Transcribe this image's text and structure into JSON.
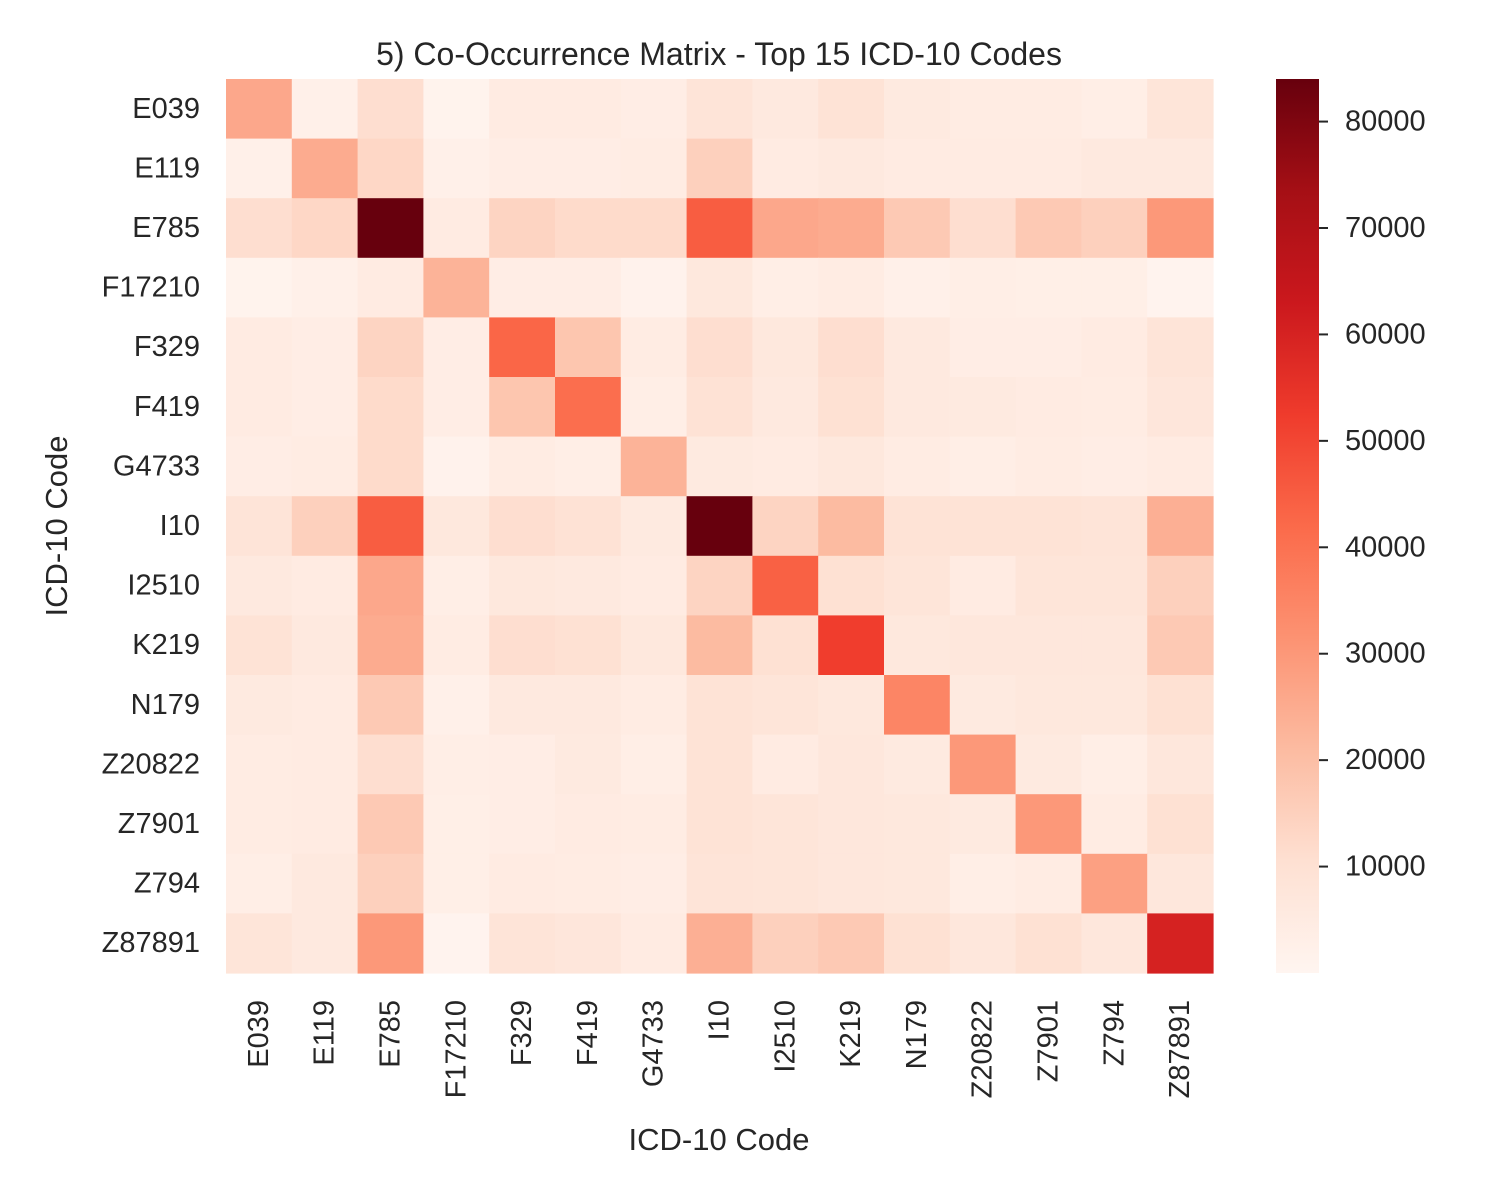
{
  "chart_data": {
    "type": "heatmap",
    "title": "5) Co-Occurrence Matrix - Top 15 ICD-10 Codes",
    "xlabel": "ICD-10 Code",
    "ylabel": "ICD-10 Code",
    "categories": [
      "E039",
      "E119",
      "E785",
      "F17210",
      "F329",
      "F419",
      "G4733",
      "I10",
      "I2510",
      "K219",
      "N179",
      "Z20822",
      "Z7901",
      "Z794",
      "Z87891"
    ],
    "colormap": "Reds",
    "vmin": 0,
    "vmax": 84000,
    "colorbar_ticks": [
      10000,
      20000,
      30000,
      40000,
      50000,
      60000,
      70000,
      80000
    ],
    "colorbar_tick_labels": [
      "10000",
      "20000",
      "30000",
      "40000",
      "50000",
      "60000",
      "70000",
      "80000"
    ],
    "matrix": [
      [
        26000,
        2500,
        11000,
        1200,
        5000,
        5000,
        4000,
        8500,
        6000,
        9000,
        5500,
        4500,
        4500,
        3500,
        8000
      ],
      [
        2500,
        25000,
        13000,
        2500,
        4000,
        4000,
        4500,
        15000,
        5000,
        6000,
        5000,
        5000,
        5000,
        6000,
        6000
      ],
      [
        11000,
        13000,
        84000,
        5000,
        14000,
        12000,
        12000,
        45000,
        26000,
        25000,
        17000,
        11000,
        17000,
        15000,
        30000
      ],
      [
        1200,
        2500,
        5000,
        23000,
        4000,
        4000,
        1500,
        6500,
        3500,
        4500,
        2500,
        3500,
        3000,
        3000,
        800
      ],
      [
        5000,
        4000,
        14000,
        4000,
        43000,
        18000,
        4500,
        11000,
        6500,
        11000,
        6000,
        4000,
        4000,
        5000,
        8500
      ],
      [
        5000,
        4000,
        12000,
        4000,
        18000,
        41000,
        3500,
        9500,
        6000,
        10000,
        6000,
        5500,
        5000,
        4500,
        7500
      ],
      [
        4000,
        4500,
        12000,
        1500,
        4500,
        3500,
        23000,
        5500,
        5000,
        6500,
        4500,
        3500,
        4500,
        4000,
        5000
      ],
      [
        8500,
        15000,
        45000,
        6500,
        11000,
        9500,
        5500,
        84000,
        14000,
        21000,
        9000,
        9000,
        9000,
        8500,
        24000
      ],
      [
        6000,
        5000,
        26000,
        3500,
        6500,
        6000,
        5000,
        14000,
        44000,
        10000,
        8000,
        5000,
        8000,
        8000,
        15000
      ],
      [
        9000,
        6000,
        25000,
        4500,
        11000,
        10000,
        6500,
        21000,
        10000,
        52000,
        6500,
        7000,
        7000,
        7000,
        17000
      ],
      [
        5500,
        5000,
        17000,
        2500,
        6000,
        6000,
        4500,
        9000,
        8000,
        6500,
        35000,
        5500,
        6500,
        6500,
        10000
      ],
      [
        4500,
        5000,
        11000,
        3500,
        4000,
        5500,
        3500,
        9000,
        5000,
        7000,
        5500,
        30000,
        5500,
        3500,
        7000
      ],
      [
        4500,
        5000,
        17000,
        3000,
        4000,
        5000,
        4500,
        9000,
        8000,
        7000,
        6500,
        5500,
        30000,
        4500,
        10000
      ],
      [
        3500,
        6000,
        15000,
        3000,
        5000,
        4500,
        4000,
        8500,
        8000,
        7000,
        6500,
        3500,
        4500,
        28000,
        7000
      ],
      [
        8000,
        6000,
        30000,
        800,
        8500,
        7500,
        5000,
        24000,
        15000,
        17000,
        10000,
        7000,
        10000,
        7000,
        60000
      ]
    ]
  }
}
